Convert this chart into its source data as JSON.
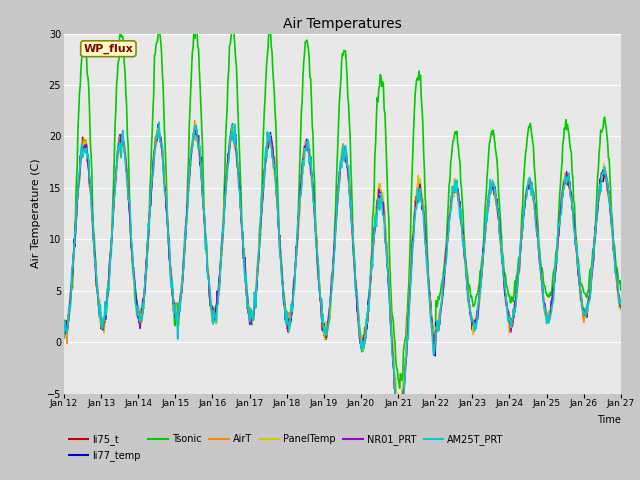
{
  "title": "Air Temperatures",
  "xlabel": "Time",
  "ylabel": "Air Temperature (C)",
  "ylim": [
    -5,
    30
  ],
  "yticks": [
    -5,
    0,
    5,
    10,
    15,
    20,
    25,
    30
  ],
  "fig_bg": "#c8c8c8",
  "plot_bg": "#e8e8e8",
  "grid_color": "white",
  "series": {
    "li75_t": {
      "color": "#cc0000",
      "lw": 1.0
    },
    "li77_temp": {
      "color": "#0000cc",
      "lw": 1.0
    },
    "Tsonic": {
      "color": "#00cc00",
      "lw": 1.2
    },
    "AirT": {
      "color": "#ff8800",
      "lw": 1.0
    },
    "PanelTemp": {
      "color": "#cccc00",
      "lw": 1.0
    },
    "NR01_PRT": {
      "color": "#9900cc",
      "lw": 1.0
    },
    "AM25T_PRT": {
      "color": "#00cccc",
      "lw": 1.2
    }
  },
  "annotation_text": "WP_flux",
  "annotation_color": "#880000",
  "annotation_bg": "#ffffcc",
  "annotation_border": "#888800"
}
